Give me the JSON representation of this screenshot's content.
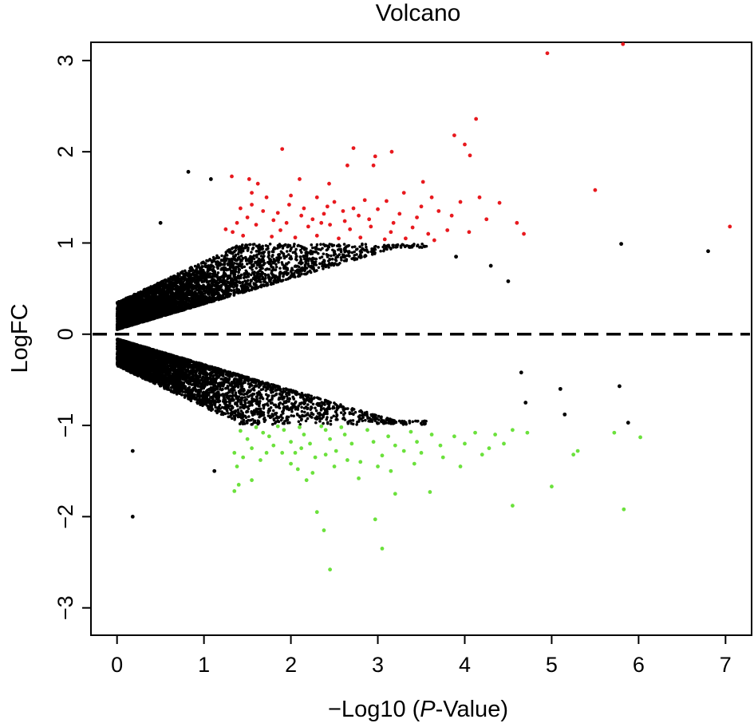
{
  "chart_data": {
    "type": "scatter",
    "title": "Volcano",
    "xlabel_prefix": "−Log10 (",
    "xlabel_italic": "P",
    "xlabel_suffix": "-Value)",
    "ylabel": "LogFC",
    "xlim": [
      -0.3,
      7.3
    ],
    "ylim": [
      -3.3,
      3.2
    ],
    "x_ticks": [
      "0",
      "1",
      "2",
      "3",
      "4",
      "5",
      "6",
      "7"
    ],
    "y_ticks": [
      "−3",
      "−2",
      "−1",
      "0",
      "1",
      "2",
      "3"
    ],
    "reference_line": {
      "y": 0,
      "style": "dashed"
    },
    "thresholds": {
      "logFC": 1,
      "neg_log10_p": 1.3
    },
    "colors": {
      "up": "#e8191e",
      "down": "#6be13c",
      "ns": "#000000"
    },
    "series": [
      {
        "group": "up",
        "points": [
          [
            4.95,
            3.08
          ],
          [
            5.82,
            3.18
          ],
          [
            4.13,
            2.36
          ],
          [
            3.88,
            2.18
          ],
          [
            4.0,
            2.08
          ],
          [
            1.9,
            2.03
          ],
          [
            4.06,
            1.96
          ],
          [
            2.72,
            2.04
          ],
          [
            3.16,
            2.0
          ],
          [
            2.97,
            1.95
          ],
          [
            2.65,
            1.85
          ],
          [
            2.95,
            1.85
          ],
          [
            1.32,
            1.73
          ],
          [
            1.52,
            1.7
          ],
          [
            1.62,
            1.65
          ],
          [
            2.1,
            1.7
          ],
          [
            2.44,
            1.65
          ],
          [
            3.52,
            1.67
          ],
          [
            5.5,
            1.58
          ],
          [
            7.05,
            1.18
          ],
          [
            1.55,
            1.55
          ],
          [
            1.72,
            1.5
          ],
          [
            2.0,
            1.52
          ],
          [
            2.3,
            1.5
          ],
          [
            2.5,
            1.45
          ],
          [
            2.85,
            1.47
          ],
          [
            3.1,
            1.46
          ],
          [
            3.3,
            1.55
          ],
          [
            3.62,
            1.5
          ],
          [
            3.95,
            1.45
          ],
          [
            4.17,
            1.5
          ],
          [
            4.4,
            1.44
          ],
          [
            1.42,
            1.38
          ],
          [
            1.68,
            1.35
          ],
          [
            1.85,
            1.33
          ],
          [
            2.15,
            1.38
          ],
          [
            2.38,
            1.32
          ],
          [
            2.6,
            1.35
          ],
          [
            2.78,
            1.3
          ],
          [
            3.0,
            1.37
          ],
          [
            3.25,
            1.32
          ],
          [
            3.45,
            1.28
          ],
          [
            3.7,
            1.35
          ],
          [
            3.85,
            1.3
          ],
          [
            4.25,
            1.26
          ],
          [
            4.6,
            1.22
          ],
          [
            1.38,
            1.22
          ],
          [
            1.6,
            1.2
          ],
          [
            1.95,
            1.22
          ],
          [
            2.2,
            1.18
          ],
          [
            2.45,
            1.2
          ],
          [
            2.68,
            1.15
          ],
          [
            2.92,
            1.18
          ],
          [
            3.15,
            1.12
          ],
          [
            3.4,
            1.17
          ],
          [
            3.58,
            1.1
          ],
          [
            3.8,
            1.14
          ],
          [
            4.05,
            1.12
          ],
          [
            4.68,
            1.1
          ],
          [
            1.45,
            1.08
          ],
          [
            1.78,
            1.07
          ],
          [
            2.05,
            1.06
          ],
          [
            2.3,
            1.08
          ],
          [
            2.55,
            1.05
          ],
          [
            2.8,
            1.06
          ],
          [
            3.08,
            1.04
          ],
          [
            3.32,
            1.05
          ],
          [
            3.65,
            1.03
          ],
          [
            1.33,
            1.12
          ],
          [
            1.88,
            1.14
          ],
          [
            2.62,
            1.24
          ],
          [
            3.18,
            1.22
          ],
          [
            1.5,
            1.28
          ],
          [
            2.25,
            1.26
          ],
          [
            2.9,
            1.26
          ],
          [
            1.25,
            1.15
          ],
          [
            1.98,
            1.42
          ],
          [
            2.42,
            1.4
          ],
          [
            3.5,
            1.4
          ],
          [
            1.8,
            1.25
          ],
          [
            2.12,
            1.3
          ],
          [
            2.72,
            1.38
          ],
          [
            1.55,
            1.42
          ],
          [
            2.35,
            1.22
          ]
        ]
      },
      {
        "group": "down",
        "points": [
          [
            1.35,
            -1.72
          ],
          [
            1.4,
            -1.65
          ],
          [
            1.55,
            -1.6
          ],
          [
            2.08,
            -1.48
          ],
          [
            2.18,
            -1.6
          ],
          [
            2.3,
            -1.95
          ],
          [
            2.38,
            -2.15
          ],
          [
            2.45,
            -2.58
          ],
          [
            2.97,
            -2.03
          ],
          [
            3.05,
            -2.35
          ],
          [
            3.2,
            -1.75
          ],
          [
            3.6,
            -1.73
          ],
          [
            4.55,
            -1.88
          ],
          [
            5.0,
            -1.67
          ],
          [
            5.83,
            -1.92
          ],
          [
            1.35,
            -1.3
          ],
          [
            1.55,
            -1.25
          ],
          [
            1.8,
            -1.22
          ],
          [
            2.05,
            -1.3
          ],
          [
            2.28,
            -1.35
          ],
          [
            2.52,
            -1.28
          ],
          [
            2.8,
            -1.4
          ],
          [
            3.05,
            -1.33
          ],
          [
            3.3,
            -1.28
          ],
          [
            3.5,
            -1.3
          ],
          [
            3.75,
            -1.35
          ],
          [
            3.95,
            -1.45
          ],
          [
            4.2,
            -1.32
          ],
          [
            4.45,
            -1.2
          ],
          [
            5.25,
            -1.32
          ],
          [
            5.3,
            -1.28
          ],
          [
            5.72,
            -1.08
          ],
          [
            6.02,
            -1.13
          ],
          [
            1.42,
            -1.06
          ],
          [
            1.68,
            -1.08
          ],
          [
            1.92,
            -1.05
          ],
          [
            2.15,
            -1.1
          ],
          [
            2.4,
            -1.05
          ],
          [
            2.62,
            -1.1
          ],
          [
            2.88,
            -1.05
          ],
          [
            3.12,
            -1.12
          ],
          [
            3.38,
            -1.07
          ],
          [
            3.62,
            -1.1
          ],
          [
            3.88,
            -1.12
          ],
          [
            4.12,
            -1.08
          ],
          [
            4.35,
            -1.1
          ],
          [
            4.55,
            -1.05
          ],
          [
            4.72,
            -1.08
          ],
          [
            1.5,
            -1.15
          ],
          [
            1.75,
            -1.12
          ],
          [
            2.0,
            -1.18
          ],
          [
            2.22,
            -1.2
          ],
          [
            2.45,
            -1.15
          ],
          [
            2.7,
            -1.2
          ],
          [
            2.95,
            -1.18
          ],
          [
            3.2,
            -1.22
          ],
          [
            3.45,
            -1.18
          ],
          [
            3.72,
            -1.22
          ],
          [
            4.0,
            -1.2
          ],
          [
            4.28,
            -1.25
          ],
          [
            1.6,
            -1.02
          ],
          [
            1.85,
            -1.01
          ],
          [
            2.1,
            -1.02
          ],
          [
            2.35,
            -1.01
          ],
          [
            2.58,
            -1.02
          ],
          [
            1.38,
            -1.45
          ],
          [
            1.65,
            -1.38
          ],
          [
            2.0,
            -1.42
          ],
          [
            2.25,
            -1.52
          ],
          [
            2.5,
            -1.45
          ],
          [
            2.78,
            -1.58
          ],
          [
            3.15,
            -1.5
          ],
          [
            3.42,
            -1.42
          ],
          [
            1.72,
            -1.3
          ],
          [
            2.4,
            -1.32
          ],
          [
            2.65,
            -1.38
          ],
          [
            1.45,
            -1.35
          ],
          [
            1.9,
            -1.3
          ],
          [
            3.0,
            -1.45
          ],
          [
            2.12,
            -1.25
          ]
        ]
      },
      {
        "group": "ns_outliers",
        "points": [
          [
            0.18,
            -1.28
          ],
          [
            0.18,
            -2.0
          ],
          [
            0.82,
            1.78
          ],
          [
            0.5,
            1.22
          ],
          [
            1.12,
            -1.5
          ],
          [
            5.8,
            0.99
          ],
          [
            6.8,
            0.91
          ],
          [
            5.78,
            -0.57
          ],
          [
            5.88,
            -0.97
          ],
          [
            4.5,
            0.58
          ],
          [
            5.1,
            -0.6
          ],
          [
            5.15,
            -0.88
          ],
          [
            4.65,
            -0.42
          ],
          [
            4.3,
            0.75
          ],
          [
            3.9,
            0.85
          ],
          [
            4.7,
            -0.75
          ],
          [
            1.08,
            1.7
          ]
        ]
      }
    ]
  }
}
